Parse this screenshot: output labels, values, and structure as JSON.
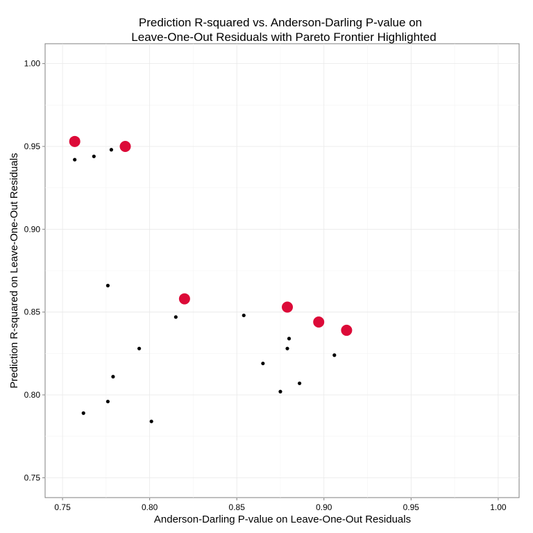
{
  "chart_data": {
    "type": "scatter",
    "title_line1": "Prediction R-squared vs. Anderson-Darling P-value on",
    "title_line2": "Leave-One-Out Residuals with Pareto Frontier Highlighted",
    "xlabel": "Anderson-Darling P-value on Leave-One-Out Residuals",
    "ylabel": "Prediction R-squared on Leave-One-Out Residuals",
    "xlim": [
      0.74,
      1.012
    ],
    "ylim": [
      0.738,
      1.012
    ],
    "x_ticks": [
      0.75,
      0.8,
      0.85,
      0.9,
      0.95,
      1.0
    ],
    "x_tick_labels": [
      "0.75",
      "0.80",
      "0.85",
      "0.90",
      "0.95",
      "1.00"
    ],
    "y_ticks": [
      0.75,
      0.8,
      0.85,
      0.9,
      0.95,
      1.0
    ],
    "y_tick_labels": [
      "0.75",
      "0.80",
      "0.85",
      "0.90",
      "0.95",
      "1.00"
    ],
    "grid": true,
    "series": [
      {
        "role": "all-models",
        "color": "#000000",
        "points": [
          {
            "x": 0.757,
            "y": 0.942
          },
          {
            "x": 0.768,
            "y": 0.944
          },
          {
            "x": 0.778,
            "y": 0.948
          },
          {
            "x": 0.776,
            "y": 0.866
          },
          {
            "x": 0.815,
            "y": 0.847
          },
          {
            "x": 0.854,
            "y": 0.848
          },
          {
            "x": 0.794,
            "y": 0.828
          },
          {
            "x": 0.779,
            "y": 0.811
          },
          {
            "x": 0.776,
            "y": 0.796
          },
          {
            "x": 0.762,
            "y": 0.789
          },
          {
            "x": 0.801,
            "y": 0.784
          },
          {
            "x": 0.865,
            "y": 0.819
          },
          {
            "x": 0.879,
            "y": 0.828
          },
          {
            "x": 0.88,
            "y": 0.834
          },
          {
            "x": 0.875,
            "y": 0.802
          },
          {
            "x": 0.886,
            "y": 0.807
          },
          {
            "x": 0.906,
            "y": 0.824
          }
        ]
      },
      {
        "role": "pareto-frontier",
        "color": "#dc0a38",
        "points": [
          {
            "x": 0.757,
            "y": 0.953
          },
          {
            "x": 0.786,
            "y": 0.95
          },
          {
            "x": 0.82,
            "y": 0.858
          },
          {
            "x": 0.879,
            "y": 0.853
          },
          {
            "x": 0.897,
            "y": 0.844
          },
          {
            "x": 0.913,
            "y": 0.839
          }
        ]
      }
    ]
  }
}
